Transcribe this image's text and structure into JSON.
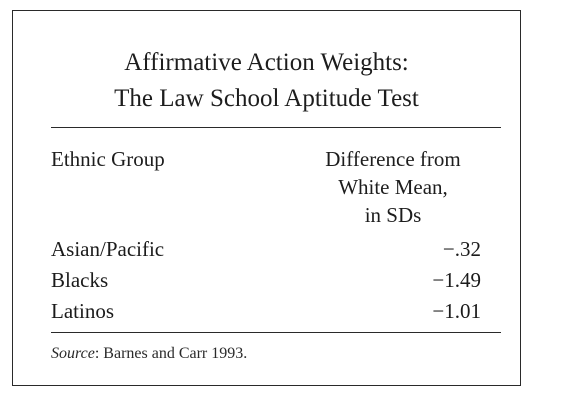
{
  "table": {
    "title_line1": "Affirmative Action Weights:",
    "title_line2": "The Law School Aptitude Test",
    "col_group": "Ethnic Group",
    "col_diff_line1": "Difference from",
    "col_diff_line2": "White Mean,",
    "col_diff_line3": "in SDs",
    "rows": [
      {
        "group": "Asian/Pacific",
        "value": "−.32"
      },
      {
        "group": "Blacks",
        "value": "−1.49"
      },
      {
        "group": "Latinos",
        "value": "−1.01"
      }
    ],
    "source_label": "Source",
    "source_text": ": Barnes and Carr 1993."
  }
}
